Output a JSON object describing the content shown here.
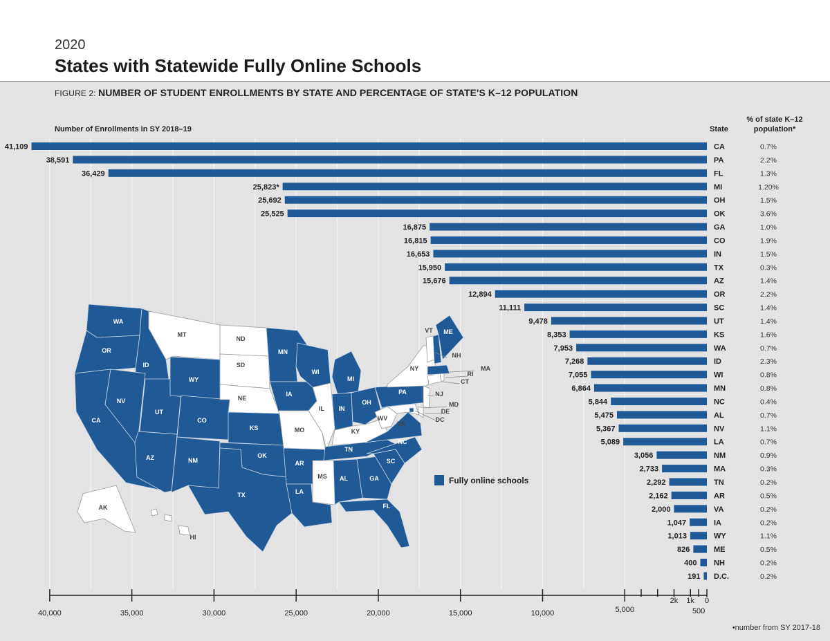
{
  "header": {
    "year": "2020",
    "title": "States with Statewide Fully Online Schools",
    "figure_lead": "FIGURE 2: ",
    "figure_title": "NUMBER OF STUDENT ENROLLMENTS BY STATE AND PERCENTAGE OF STATE'S K–12 POPULATION"
  },
  "columns": {
    "enrollments": "Number of Enrollments in SY 2018–19",
    "state": "State",
    "pct_line1": "% of state K–12",
    "pct_line2": "population*"
  },
  "footnote": "•number from SY 2017-18",
  "legend": {
    "label": "Fully online schools"
  },
  "map": {
    "online_states": [
      "WA",
      "OR",
      "CA",
      "ID",
      "NV",
      "UT",
      "AZ",
      "WY",
      "CO",
      "NM",
      "TX",
      "KS",
      "OK",
      "MN",
      "IA",
      "WI",
      "MI",
      "IN",
      "OH",
      "PA",
      "NC",
      "SC",
      "GA",
      "AL",
      "TN",
      "AR",
      "LA",
      "FL",
      "ME",
      "NH",
      "MA",
      "VA",
      "DC"
    ],
    "other_states": [
      "MT",
      "ND",
      "SD",
      "NE",
      "MO",
      "IL",
      "KY",
      "WV",
      "NY",
      "VT",
      "NJ",
      "CT",
      "RI",
      "MD",
      "DE",
      "MS",
      "AK",
      "HI"
    ],
    "labels": [
      "WA",
      "OR",
      "CA",
      "ID",
      "NV",
      "UT",
      "AZ",
      "MT",
      "WY",
      "CO",
      "NM",
      "ND",
      "SD",
      "NE",
      "KS",
      "OK",
      "TX",
      "MN",
      "IA",
      "MO",
      "AR",
      "LA",
      "WI",
      "IL",
      "MI",
      "IN",
      "OH",
      "KY",
      "TN",
      "MS",
      "AL",
      "GA",
      "FL",
      "SC",
      "NC",
      "VA",
      "WV",
      "PA",
      "NY",
      "VT",
      "ME",
      "NH",
      "MA",
      "RI",
      "CT",
      "NJ",
      "MD",
      "DE",
      "DC",
      "AK",
      "HI"
    ]
  },
  "colors": {
    "bar": "#1f5a96",
    "background": "#e3e3e3",
    "other_state": "#ffffff"
  },
  "chart_data": {
    "type": "bar",
    "orientation": "horizontal-right-aligned",
    "title": "NUMBER OF STUDENT ENROLLMENTS BY STATE AND PERCENTAGE OF STATE'S K–12 POPULATION",
    "xlabel": "Number of Enrollments in SY 2018–19",
    "xlim": [
      0,
      41109
    ],
    "x_ticks": [
      40000,
      35000,
      30000,
      25000,
      20000,
      15000,
      10000,
      5000,
      2000,
      1000,
      500,
      0
    ],
    "x_tick_labels": [
      "40,000",
      "35,000",
      "30,000",
      "25,000",
      "20,000",
      "15,000",
      "10,000",
      "5,000",
      "2k",
      "1k",
      "500",
      "0"
    ],
    "grid": true,
    "rows": [
      {
        "state": "CA",
        "value": 41109,
        "label": "41,109",
        "pct": "0.7%"
      },
      {
        "state": "PA",
        "value": 38591,
        "label": "38,591",
        "pct": "2.2%"
      },
      {
        "state": "FL",
        "value": 36429,
        "label": "36,429",
        "pct": "1.3%"
      },
      {
        "state": "MI",
        "value": 25823,
        "label": "25,823*",
        "pct": "1.20%"
      },
      {
        "state": "OH",
        "value": 25692,
        "label": "25,692",
        "pct": "1.5%"
      },
      {
        "state": "OK",
        "value": 25525,
        "label": "25,525",
        "pct": "3.6%"
      },
      {
        "state": "GA",
        "value": 16875,
        "label": "16,875",
        "pct": "1.0%"
      },
      {
        "state": "CO",
        "value": 16815,
        "label": "16,815",
        "pct": "1.9%"
      },
      {
        "state": "IN",
        "value": 16653,
        "label": "16,653",
        "pct": "1.5%"
      },
      {
        "state": "TX",
        "value": 15950,
        "label": "15,950",
        "pct": "0.3%"
      },
      {
        "state": "AZ",
        "value": 15676,
        "label": "15,676",
        "pct": "1.4%"
      },
      {
        "state": "OR",
        "value": 12894,
        "label": "12,894",
        "pct": "2.2%"
      },
      {
        "state": "SC",
        "value": 11111,
        "label": "11,111",
        "pct": "1.4%"
      },
      {
        "state": "UT",
        "value": 9478,
        "label": "9,478",
        "pct": "1.4%"
      },
      {
        "state": "KS",
        "value": 8353,
        "label": "8,353",
        "pct": "1.6%"
      },
      {
        "state": "WA",
        "value": 7953,
        "label": "7,953",
        "pct": "0.7%"
      },
      {
        "state": "ID",
        "value": 7268,
        "label": "7,268",
        "pct": "2.3%"
      },
      {
        "state": "WI",
        "value": 7055,
        "label": "7,055",
        "pct": "0.8%"
      },
      {
        "state": "MN",
        "value": 6864,
        "label": "6,864",
        "pct": "0.8%"
      },
      {
        "state": "NC",
        "value": 5844,
        "label": "5,844",
        "pct": "0.4%"
      },
      {
        "state": "AL",
        "value": 5475,
        "label": "5,475",
        "pct": "0.7%"
      },
      {
        "state": "NV",
        "value": 5367,
        "label": "5,367",
        "pct": "1.1%"
      },
      {
        "state": "LA",
        "value": 5089,
        "label": "5,089",
        "pct": "0.7%"
      },
      {
        "state": "NM",
        "value": 3056,
        "label": "3,056",
        "pct": "0.9%"
      },
      {
        "state": "MA",
        "value": 2733,
        "label": "2,733",
        "pct": "0.3%"
      },
      {
        "state": "TN",
        "value": 2292,
        "label": "2,292",
        "pct": "0.2%"
      },
      {
        "state": "AR",
        "value": 2162,
        "label": "2,162",
        "pct": "0.5%"
      },
      {
        "state": "VA",
        "value": 2000,
        "label": "2,000",
        "pct": "0.2%"
      },
      {
        "state": "IA",
        "value": 1047,
        "label": "1,047",
        "pct": "0.2%"
      },
      {
        "state": "WY",
        "value": 1013,
        "label": "1,013",
        "pct": "1.1%"
      },
      {
        "state": "ME",
        "value": 826,
        "label": "826",
        "pct": "0.5%"
      },
      {
        "state": "NH",
        "value": 400,
        "label": "400",
        "pct": "0.2%"
      },
      {
        "state": "D.C.",
        "value": 191,
        "label": "191",
        "pct": "0.2%"
      }
    ]
  }
}
